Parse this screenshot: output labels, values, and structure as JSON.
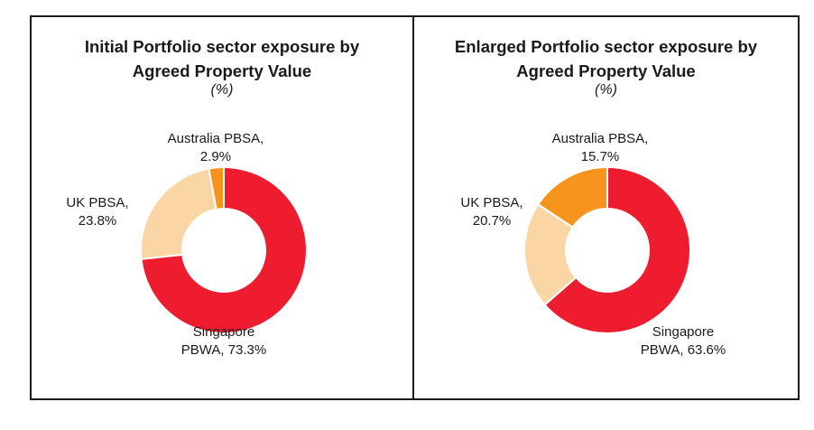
{
  "colors": {
    "singapore": "#ED1C2E",
    "uk": "#FAD6A5",
    "australia": "#F7941D",
    "border": "#1a1a1a"
  },
  "chart_data": [
    {
      "type": "pie",
      "title_line1": "Initial Portfolio sector exposure by",
      "title_line2": "Agreed Property Value",
      "unit": "(%)",
      "slices": [
        {
          "label_line1": "Singapore",
          "label_line2": "PBWA, 73.3%",
          "value": 73.3,
          "color": "#ED1C2E"
        },
        {
          "label_line1": "UK PBSA,",
          "label_line2": "23.8%",
          "value": 23.8,
          "color": "#FAD6A5"
        },
        {
          "label_line1": "Australia PBSA,",
          "label_line2": "2.9%",
          "value": 2.9,
          "color": "#F7941D"
        }
      ]
    },
    {
      "type": "pie",
      "title_line1": "Enlarged Portfolio sector exposure by",
      "title_line2": "Agreed Property Value",
      "unit": "(%)",
      "slices": [
        {
          "label_line1": "Singapore",
          "label_line2": "PBWA, 63.6%",
          "value": 63.6,
          "color": "#ED1C2E"
        },
        {
          "label_line1": "UK PBSA,",
          "label_line2": "20.7%",
          "value": 20.7,
          "color": "#FAD6A5"
        },
        {
          "label_line1": "Australia PBSA,",
          "label_line2": "15.7%",
          "value": 15.7,
          "color": "#F7941D"
        }
      ]
    }
  ]
}
